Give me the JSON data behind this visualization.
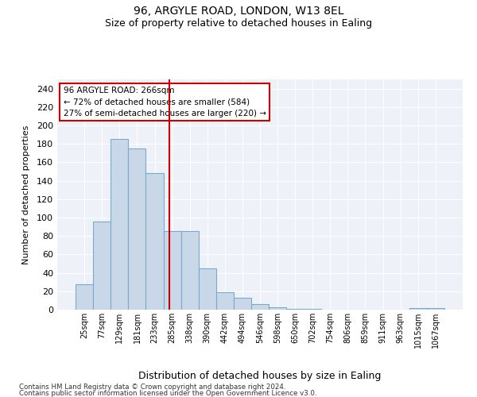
{
  "title1": "96, ARGYLE ROAD, LONDON, W13 8EL",
  "title2": "Size of property relative to detached houses in Ealing",
  "xlabel": "Distribution of detached houses by size in Ealing",
  "ylabel": "Number of detached properties",
  "categories": [
    "25sqm",
    "77sqm",
    "129sqm",
    "181sqm",
    "233sqm",
    "285sqm",
    "338sqm",
    "390sqm",
    "442sqm",
    "494sqm",
    "546sqm",
    "598sqm",
    "650sqm",
    "702sqm",
    "754sqm",
    "806sqm",
    "859sqm",
    "911sqm",
    "963sqm",
    "1015sqm",
    "1067sqm"
  ],
  "values": [
    28,
    96,
    185,
    175,
    148,
    85,
    85,
    45,
    19,
    13,
    6,
    3,
    1,
    1,
    0,
    0,
    0,
    0,
    0,
    2,
    2
  ],
  "bar_color": "#c8d8e8",
  "bar_edge_color": "#7aaac8",
  "bar_edge_width": 0.8,
  "annotation_line1": "96 ARGYLE ROAD: 266sqm",
  "annotation_line2": "← 72% of detached houses are smaller (584)",
  "annotation_line3": "27% of semi-detached houses are larger (220) →",
  "red_line_x": 4.83,
  "red_line_color": "#cc0000",
  "ylim": [
    0,
    250
  ],
  "yticks": [
    0,
    20,
    40,
    60,
    80,
    100,
    120,
    140,
    160,
    180,
    200,
    220,
    240
  ],
  "background_color": "#eef2f8",
  "grid_color": "#ffffff",
  "footnote1": "Contains HM Land Registry data © Crown copyright and database right 2024.",
  "footnote2": "Contains public sector information licensed under the Open Government Licence v3.0."
}
